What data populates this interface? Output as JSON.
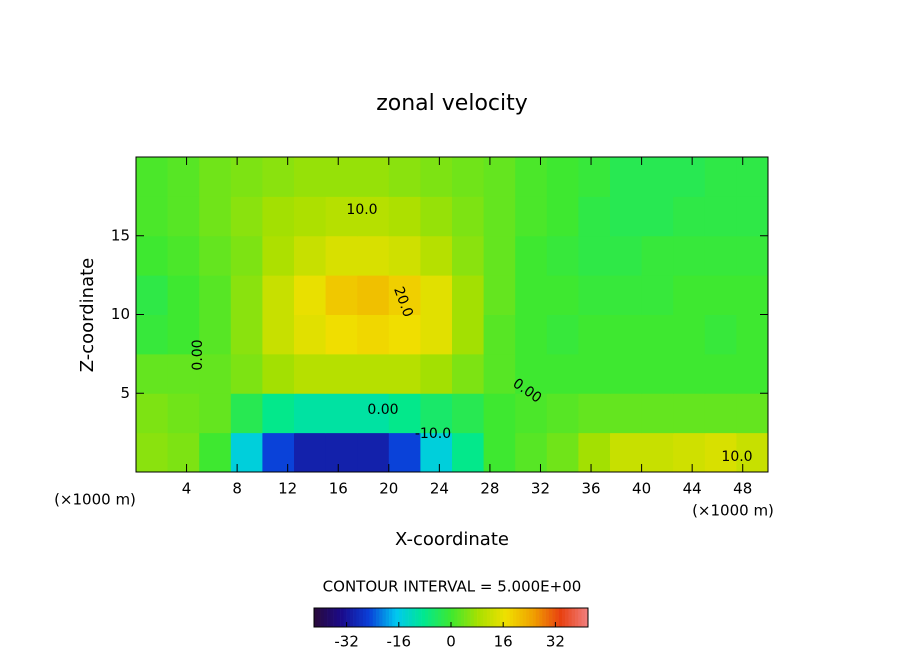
{
  "chart_data": {
    "type": "contour",
    "title": "zonal velocity",
    "x_label": "X-coordinate",
    "y_label": "Z-coordinate",
    "unit_label": "(×1000 m)",
    "annotation": "CONTOUR INTERVAL = 5.000E+00",
    "xlim": [
      0,
      50
    ],
    "ylim": [
      0,
      20
    ],
    "xticks": [
      4,
      8,
      12,
      16,
      20,
      24,
      28,
      32,
      36,
      40,
      44,
      48
    ],
    "yticks": [
      5,
      10,
      15
    ],
    "x": [
      1.25,
      3.75,
      6.25,
      8.75,
      11.25,
      13.75,
      16.25,
      18.75,
      21.25,
      23.75,
      26.25,
      28.75,
      31.25,
      33.75,
      36.25,
      38.75,
      41.25,
      43.75,
      46.25,
      48.75
    ],
    "y": [
      1.25,
      3.75,
      6.25,
      8.75,
      11.25,
      13.75,
      16.25,
      18.75
    ],
    "z": [
      [
        6,
        5,
        0,
        -15,
        -25,
        -30,
        -30,
        -30,
        -25,
        -15,
        -8,
        0,
        2,
        4,
        8,
        12,
        12,
        13,
        14,
        12
      ],
      [
        5,
        4,
        3,
        -3,
        -8,
        -10,
        -10,
        -10,
        -8,
        -5,
        -3,
        0,
        1,
        2,
        3,
        3,
        3,
        3,
        3,
        3
      ],
      [
        3,
        3,
        3,
        5,
        8,
        10,
        10,
        10,
        10,
        8,
        5,
        2,
        0,
        0,
        0,
        0,
        0,
        0,
        0,
        0
      ],
      [
        -1,
        0,
        2,
        6,
        12,
        15,
        17,
        18,
        17,
        15,
        8,
        2,
        0,
        -1,
        0,
        0,
        0,
        0,
        -1,
        0
      ],
      [
        -2,
        0,
        2,
        6,
        12,
        16,
        20,
        21,
        19,
        15,
        8,
        3,
        0,
        0,
        -1,
        -1,
        -1,
        0,
        0,
        0
      ],
      [
        0,
        1,
        3,
        5,
        9,
        12,
        14,
        14,
        13,
        10,
        6,
        3,
        0,
        -1,
        -2,
        -2,
        -1,
        -1,
        -1,
        -1
      ],
      [
        1,
        2,
        4,
        6,
        8,
        9,
        10,
        10,
        9,
        7,
        5,
        3,
        1,
        0,
        -2,
        -3,
        -3,
        -2,
        -2,
        -2
      ],
      [
        1,
        2,
        4,
        5,
        6,
        7,
        7,
        7,
        6,
        5,
        4,
        3,
        1,
        0,
        -1,
        -3,
        -3,
        -3,
        -2,
        -2
      ]
    ],
    "clim": [
      -42,
      42
    ],
    "cticks": [
      -32,
      -16,
      0,
      16,
      32
    ],
    "colormap": [
      "#2a0a3a",
      "#1a0a8a",
      "#0a3fd8",
      "#00c8f0",
      "#00e890",
      "#3ee830",
      "#a8e000",
      "#f0e000",
      "#f0a000",
      "#e84010",
      "#f08080"
    ],
    "contour_labels": [
      "10.0",
      "20.0",
      "0.00",
      "0.00",
      "0.00",
      "-10.0",
      "10.0"
    ]
  }
}
